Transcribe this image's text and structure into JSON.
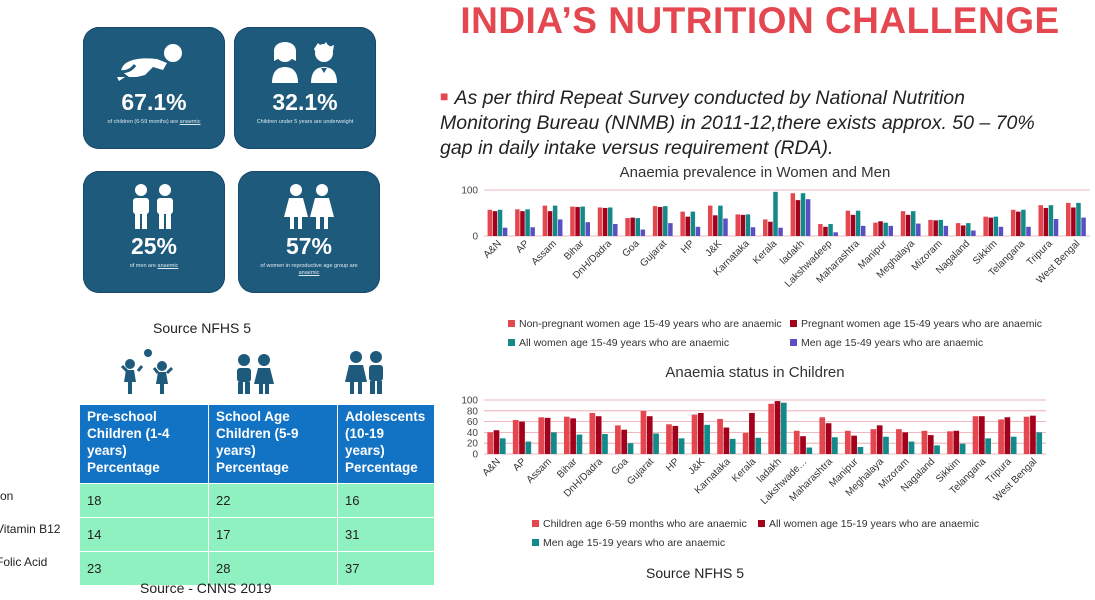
{
  "title": "INDIA’S NUTRITION CHALLENGE",
  "bullet": "As per third Repeat Survey conducted by National Nutrition Monitoring Bureau (NNMB) in 2011-12,there exists approx. 50 – 70% gap in daily intake versus requirement (RDA).",
  "tiles": [
    {
      "icon": "crawling-baby-icon",
      "percent": "67.1%",
      "caption_main": "of children (6-59 months) are ",
      "caption_em": "anaemic"
    },
    {
      "icon": "girl-boy-icon",
      "percent": "32.1%",
      "caption_main": "Children under 5 years are underweight",
      "caption_em": ""
    },
    {
      "icon": "two-men-icon",
      "percent": "25%",
      "caption_main": "of men are ",
      "caption_em": "anaemic"
    },
    {
      "icon": "two-women-icon",
      "percent": "57%",
      "caption_main": "of women in reproductive age group are ",
      "caption_em": "anaemic"
    }
  ],
  "source_tiles": "Source NFHS 5",
  "table": {
    "icons": [
      "children-playing-icon",
      "school-children-icon",
      "adolescents-icon"
    ],
    "headers": [
      "Pre-school Children (1-4 years) Percentage",
      "School Age Children (5-9 years) Percentage",
      "Adolescents (10-19 years) Percentage"
    ],
    "rows": [
      {
        "label": "ron",
        "values": [
          "18",
          "22",
          "16"
        ]
      },
      {
        "label": "Vitamin B12",
        "values": [
          "14",
          "17",
          "31"
        ]
      },
      {
        "label": "Folic Acid",
        "values": [
          "23",
          "28",
          "37"
        ]
      }
    ],
    "source": "Source - CNNS 2019"
  },
  "source_children": "Source NFHS 5",
  "colors": {
    "red": "#e4474f",
    "darkred": "#a3001b",
    "teal": "#138a8a",
    "purple": "#5a4fc0",
    "navy": "#1d5a7c",
    "tableHead": "#1272c4",
    "tableCell": "#8ff0c0"
  },
  "chart_data": [
    {
      "type": "bar",
      "title": "Anaemia prevalence in Women and Men",
      "ylim": [
        0,
        100
      ],
      "yticks": [
        0,
        100
      ],
      "grid": true,
      "legend_position": "bottom",
      "categories": [
        "A&N",
        "AP",
        "Assam",
        "Bihar",
        "DnH/Dadra",
        "Goa",
        "Gujarat",
        "HP",
        "J&K",
        "Karnataka",
        "Kerala",
        "ladakh",
        "Lakshwadeep",
        "Maharashtra",
        "Manipur",
        "Meghalaya",
        "Mizoram",
        "Nagaland",
        "Sikkim",
        "Telangana",
        "Tripura",
        "West Bengal"
      ],
      "series": [
        {
          "name": "Non-pregnant women age 15-49 years who are anaemic",
          "color": "#e4474f",
          "values": [
            57,
            58,
            66,
            64,
            62,
            39,
            65,
            53,
            66,
            47,
            36,
            93,
            26,
            55,
            29,
            54,
            35,
            28,
            42,
            57,
            67,
            72
          ]
        },
        {
          "name": "Pregnant women age 15-49 years who are anaemic",
          "color": "#a3001b",
          "values": [
            54,
            54,
            54,
            63,
            61,
            40,
            63,
            42,
            45,
            46,
            31,
            78,
            20,
            46,
            32,
            46,
            34,
            23,
            40,
            53,
            61,
            62
          ]
        },
        {
          "name": "All women age 15-49 years who are anaemic",
          "color": "#138a8a",
          "values": [
            57,
            58,
            66,
            64,
            62,
            39,
            65,
            53,
            66,
            47,
            96,
            93,
            26,
            55,
            29,
            54,
            35,
            28,
            42,
            57,
            67,
            72
          ]
        },
        {
          "name": "Men age 15-49 years who are anaemic",
          "color": "#5a4fc0",
          "values": [
            18,
            19,
            36,
            30,
            26,
            14,
            28,
            20,
            38,
            19,
            18,
            80,
            8,
            22,
            22,
            27,
            22,
            12,
            20,
            20,
            37,
            40
          ]
        }
      ]
    },
    {
      "type": "bar",
      "title": "Anaemia status in Children",
      "ylim": [
        0,
        100
      ],
      "yticks": [
        0,
        20,
        40,
        60,
        80,
        100
      ],
      "grid": true,
      "legend_position": "bottom",
      "categories": [
        "A&N",
        "AP",
        "Assam",
        "Bihar",
        "DnH/Dadra",
        "Goa",
        "Gujarat",
        "HP",
        "J&K",
        "Karnataka",
        "Kerala",
        "ladakh",
        "Lakshwade…",
        "Maharashtra",
        "Manipur",
        "Meghalaya",
        "Mizoram",
        "Nagaland",
        "Sikkim",
        "Telangana",
        "Tripura",
        "West Bengal"
      ],
      "series": [
        {
          "name": "Children age 6-59 months who are anaemic",
          "color": "#e4474f",
          "values": [
            40,
            63,
            68,
            69,
            76,
            53,
            80,
            55,
            73,
            65,
            39,
            93,
            43,
            68,
            43,
            46,
            46,
            43,
            42,
            70,
            64,
            69
          ]
        },
        {
          "name": "All women age 15-19 years who are anaemic",
          "color": "#a3001b",
          "values": [
            44,
            60,
            67,
            66,
            70,
            45,
            70,
            52,
            76,
            49,
            76,
            98,
            33,
            57,
            34,
            53,
            40,
            35,
            43,
            70,
            68,
            71
          ]
        },
        {
          "name": "Men age 15-19 years who are anaemic",
          "color": "#138a8a",
          "values": [
            29,
            23,
            40,
            36,
            37,
            20,
            38,
            29,
            54,
            28,
            30,
            95,
            12,
            31,
            13,
            32,
            23,
            16,
            19,
            29,
            32,
            40
          ]
        }
      ]
    }
  ]
}
